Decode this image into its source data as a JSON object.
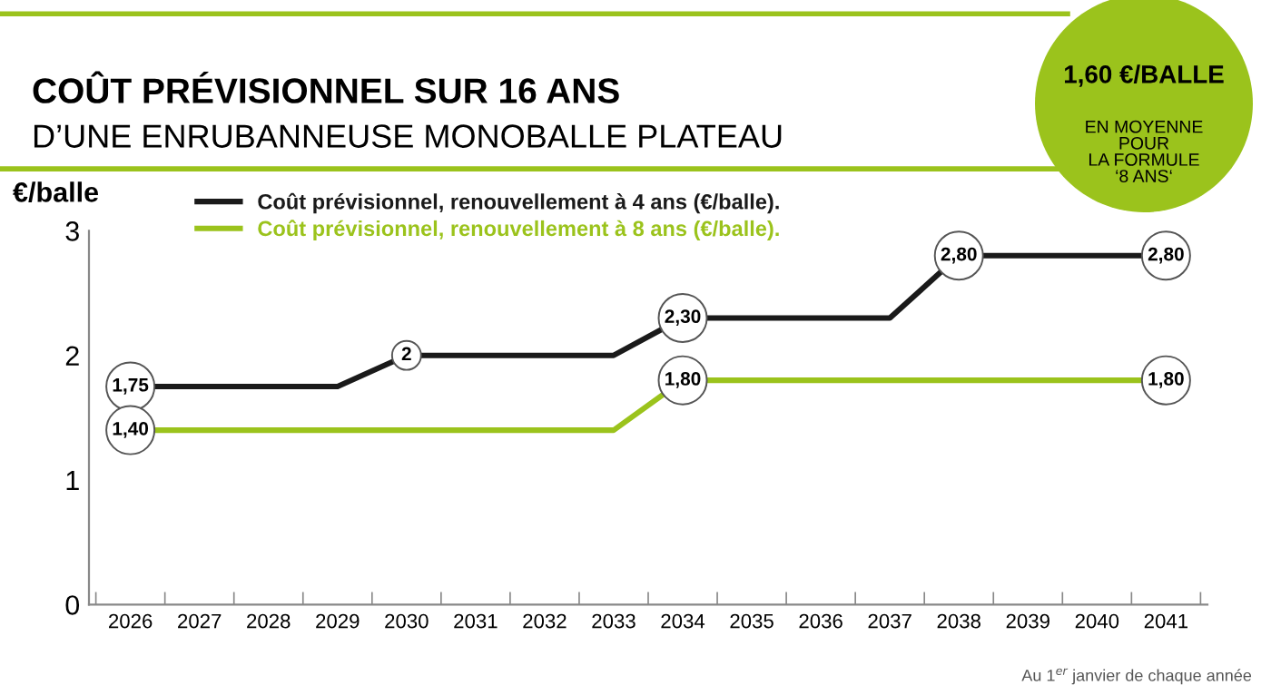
{
  "chart_data": {
    "type": "line",
    "title": "COÛT PRÉVISIONNEL SUR 16 ANS",
    "subtitle": "D’UNE ENRUBANNEUSE MONOBALLE PLATEAU",
    "ylabel": "€/balle",
    "categories": [
      "2026",
      "2027",
      "2028",
      "2029",
      "2030",
      "2031",
      "2032",
      "2033",
      "2034",
      "2035",
      "2036",
      "2037",
      "2038",
      "2039",
      "2040",
      "2041"
    ],
    "series": [
      {
        "name": "Coût prévisionnel, renouvellement à 4 ans (€/balle).",
        "color": "#1a1a1a",
        "values": [
          1.75,
          1.75,
          1.75,
          1.75,
          2,
          2,
          2,
          2,
          2.3,
          2.3,
          2.3,
          2.3,
          2.8,
          2.8,
          2.8,
          2.8
        ],
        "value_labels": [
          "1,75",
          null,
          null,
          null,
          "2",
          null,
          null,
          null,
          "2,30",
          null,
          null,
          null,
          "2,80",
          null,
          null,
          "2,80"
        ]
      },
      {
        "name": "Coût prévisionnel, renouvellement à 8 ans (€/balle).",
        "color": "#9bc31c",
        "values": [
          1.4,
          1.4,
          1.4,
          1.4,
          1.4,
          1.4,
          1.4,
          1.4,
          1.8,
          1.8,
          1.8,
          1.8,
          1.8,
          1.8,
          1.8,
          1.8
        ],
        "value_labels": [
          "1,40",
          null,
          null,
          null,
          null,
          null,
          null,
          null,
          "1,80",
          null,
          null,
          null,
          null,
          null,
          null,
          "1,80"
        ]
      }
    ],
    "ylim": [
      0,
      3
    ],
    "yticks": [
      0,
      1,
      2,
      3
    ],
    "legend": "top left",
    "grid": false,
    "marker": "none",
    "line_style": "solid",
    "annotations": [
      "1,60 €/BALLE",
      "EN MOYENNE\nPOUR\nLA FORMULE\n‘8 ANS‘",
      "Au 1$^{er}$ janvier de chaque année"
    ]
  }
}
